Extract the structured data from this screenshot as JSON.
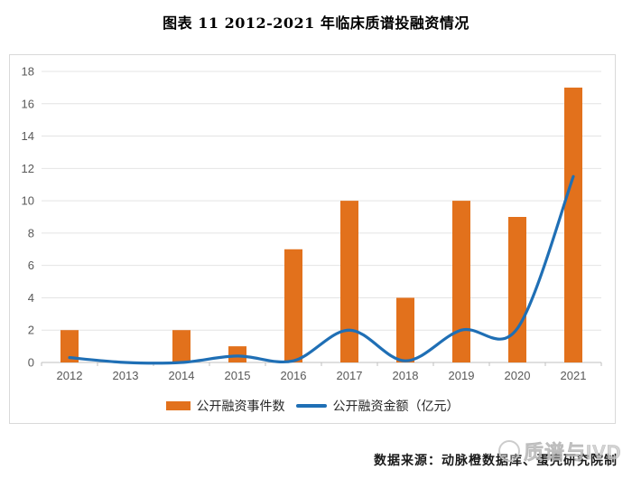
{
  "chart_data": {
    "type": "bar",
    "title": "图表 11 2012-2021 年临床质谱投融资情况",
    "categories": [
      "2012",
      "2013",
      "2014",
      "2015",
      "2016",
      "2017",
      "2018",
      "2019",
      "2020",
      "2021"
    ],
    "series": [
      {
        "name": "公开融资事件数",
        "type": "bar",
        "color": "#E2711C",
        "values": [
          2,
          0,
          2,
          1,
          7,
          10,
          4,
          10,
          9,
          17
        ]
      },
      {
        "name": "公开融资金额（亿元）",
        "type": "line",
        "color": "#1F6FB5",
        "values": [
          0.3,
          0,
          0,
          0.4,
          0.1,
          2,
          0.1,
          2,
          2.1,
          11.5
        ]
      }
    ],
    "xlabel": "",
    "ylabel": "",
    "ylim": [
      0,
      18
    ],
    "yticks": [
      0,
      2,
      4,
      6,
      8,
      10,
      12,
      14,
      16,
      18
    ],
    "grid": true,
    "legend_position": "bottom"
  },
  "footer": {
    "source": "数据来源：动脉橙数据库、蛋壳研究院制"
  },
  "watermark": {
    "text": "质谱与IVD"
  },
  "colors": {
    "grid": "#E4E4E4",
    "axis_line": "#BFBFBF",
    "tick_label": "#595959",
    "panel_border": "#D9D9D9",
    "bar": "#E2711C",
    "line": "#1F6FB5",
    "watermark": "#C7C7C7"
  }
}
